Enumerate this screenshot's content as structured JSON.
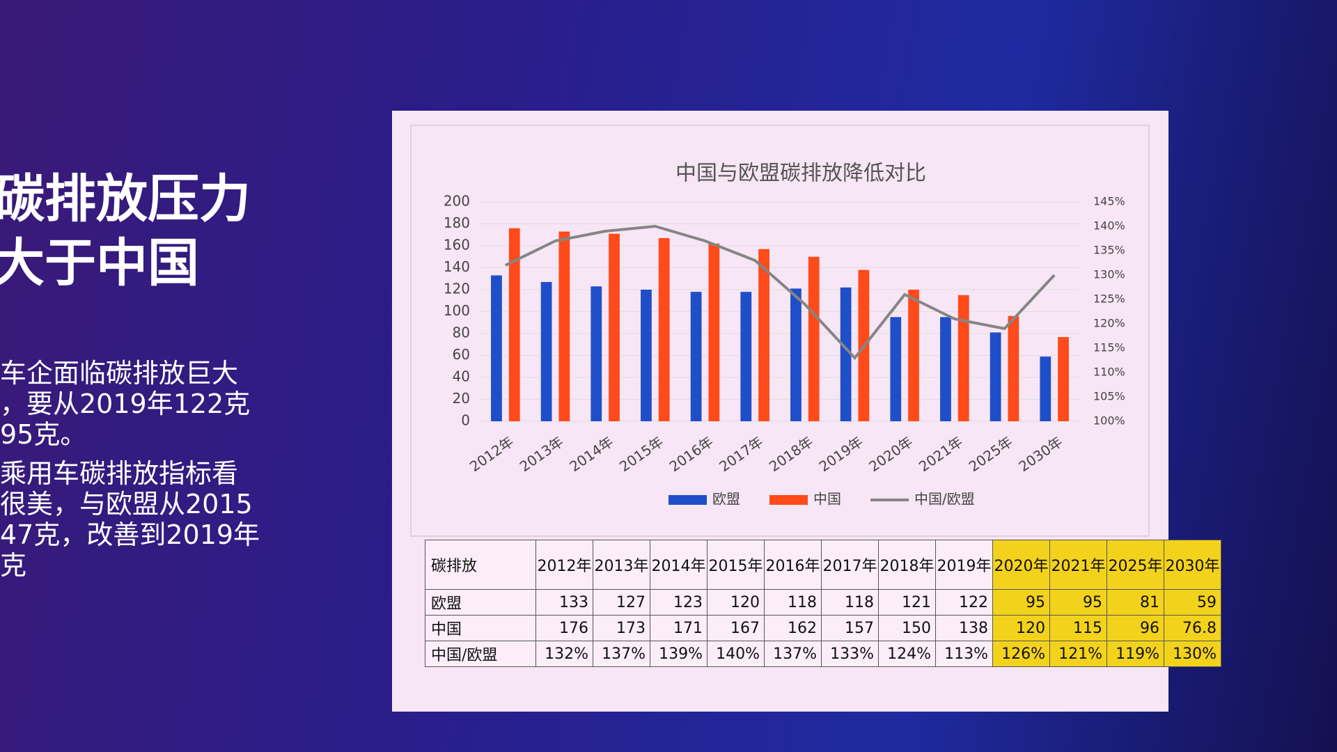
{
  "slide": {
    "heading": [
      "碳排放压力",
      "大于中国"
    ],
    "bullets": [
      "车企面临碳排放巨大",
      "，要从2019年122克",
      "95克。",
      "乘用车碳排放指标看",
      "很美，与欧盟从2015",
      "47克，改善到2019年",
      "克"
    ]
  },
  "chart_data": {
    "type": "bar",
    "title": "中国与欧盟碳排放降低对比",
    "categories": [
      "2012年",
      "2013年",
      "2014年",
      "2015年",
      "2016年",
      "2017年",
      "2018年",
      "2019年",
      "2020年",
      "2021年",
      "2025年",
      "2030年"
    ],
    "series": [
      {
        "name": "欧盟",
        "color": "#1f4fc8",
        "values": [
          133,
          127,
          123,
          120,
          118,
          118,
          121,
          122,
          95,
          95,
          81,
          59
        ]
      },
      {
        "name": "中国",
        "color": "#ff4a1a",
        "values": [
          176,
          173,
          171,
          167,
          162,
          157,
          150,
          138,
          120,
          115,
          96,
          76.8
        ]
      },
      {
        "name": "中国/欧盟",
        "color": "#858585",
        "type": "line",
        "axis": "y2",
        "values": [
          132,
          137,
          139,
          140,
          137,
          133,
          124,
          113,
          126,
          121,
          119,
          130
        ],
        "value_labels": [
          "132%",
          "137%",
          "139%",
          "140%",
          "137%",
          "133%",
          "124%",
          "113%",
          "126%",
          "121%",
          "119%",
          "130%"
        ]
      }
    ],
    "ylim": [
      0,
      200
    ],
    "yticks": [
      0,
      20,
      40,
      60,
      80,
      100,
      120,
      140,
      160,
      180,
      200
    ],
    "y2lim": [
      100,
      145
    ],
    "y2ticks": [
      {
        "value": 100,
        "label": "100%"
      },
      {
        "value": 105,
        "label": "105%"
      },
      {
        "value": 110,
        "label": "110%"
      },
      {
        "value": 115,
        "label": "115%"
      },
      {
        "value": 120,
        "label": "120%"
      },
      {
        "value": 125,
        "label": "125%"
      },
      {
        "value": 130,
        "label": "130%"
      },
      {
        "value": 135,
        "label": "135%"
      },
      {
        "value": 140,
        "label": "140%"
      },
      {
        "value": 145,
        "label": "145%"
      }
    ],
    "grid": true,
    "legend": "bottom",
    "table": {
      "corner": "碳排放",
      "highlight_color": "#f3d21c"
    }
  }
}
